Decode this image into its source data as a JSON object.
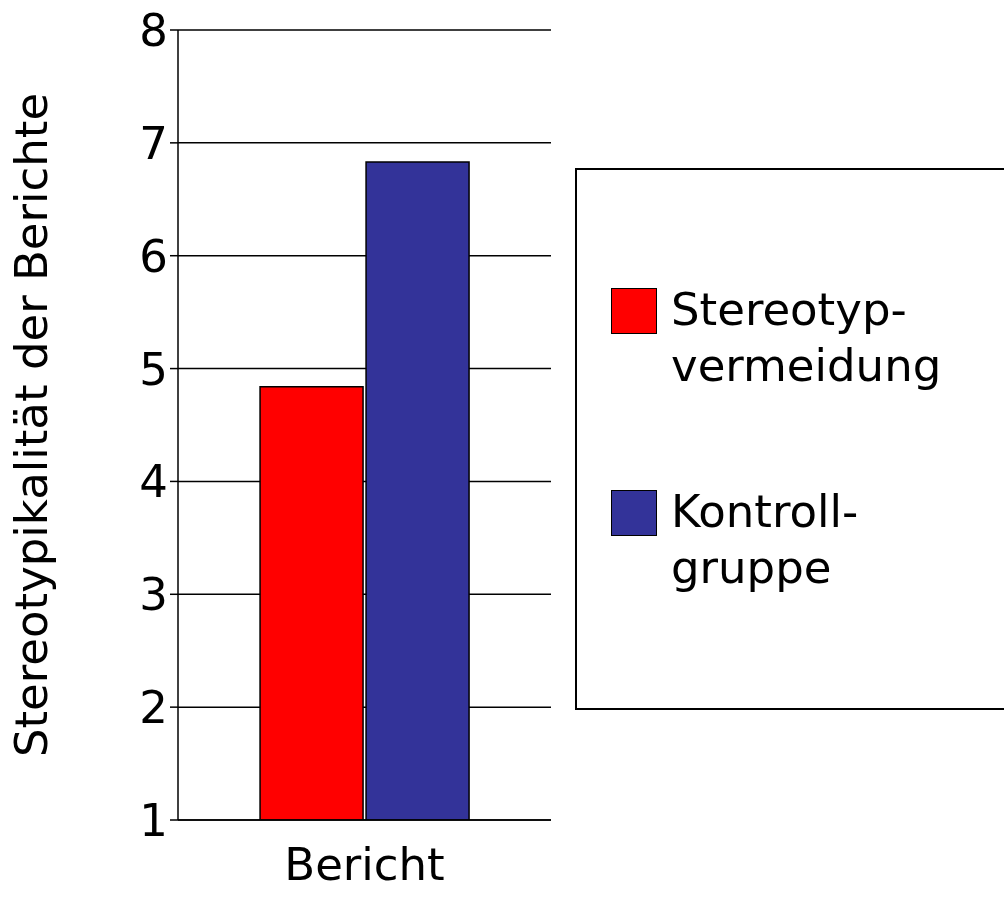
{
  "chart_data": {
    "type": "bar",
    "ylabel": "Stereotypikalität der Berichte",
    "categories": [
      "Bericht"
    ],
    "series": [
      {
        "name": "Stereotyp-vermeidung",
        "color": "#ff0000",
        "values": [
          4.84
        ]
      },
      {
        "name": "Kontroll-gruppe",
        "color": "#333399",
        "values": [
          6.83
        ]
      }
    ],
    "ylim": [
      1,
      8
    ],
    "yticks": [
      1,
      2,
      3,
      4,
      5,
      6,
      7,
      8
    ],
    "grid": "y",
    "legend": "right"
  }
}
